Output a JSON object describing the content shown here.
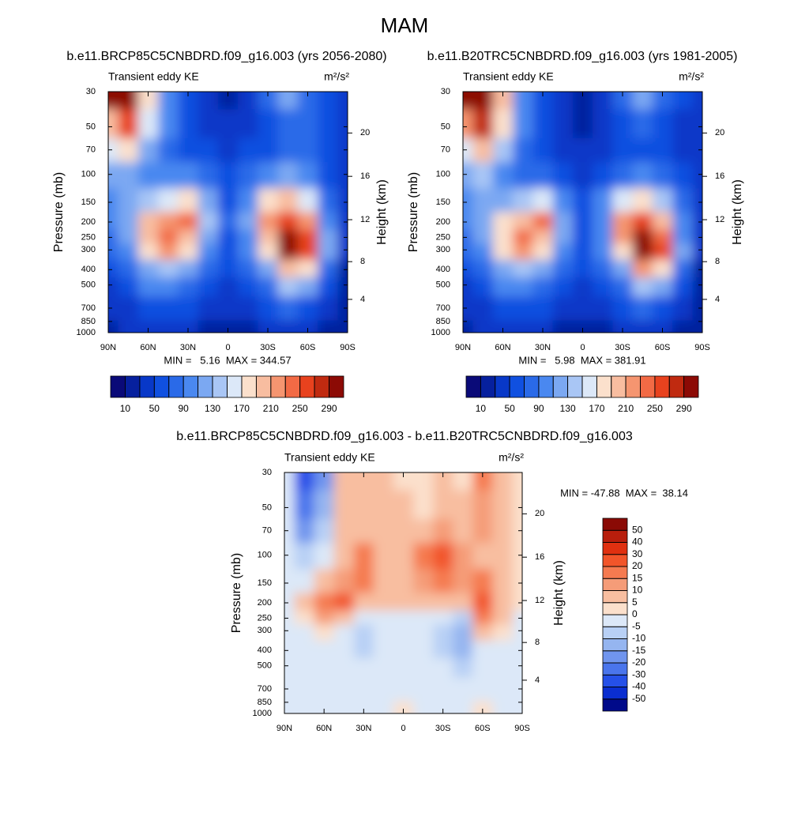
{
  "title": "MAM",
  "chart_data": [
    {
      "type": "contour",
      "subtitle": "b.e11.BRCP85C5CNBDRD.f09_g16.003 (yrs 2056-2080)",
      "title": "Transient eddy KE",
      "units": "m²/s²",
      "ylabel": "Pressure (mb)",
      "y2label": "Height (km)",
      "log_scale_y": true,
      "stats": "MIN =   5.16  MAX = 344.57",
      "x": [
        90,
        75,
        60,
        45,
        30,
        15,
        0,
        -15,
        -30,
        -45,
        -60,
        -75,
        -90
      ],
      "y": [
        30,
        50,
        70,
        100,
        150,
        200,
        250,
        300,
        400,
        500,
        700,
        1000
      ],
      "xlim": [
        90,
        -90
      ],
      "xticks": [
        {
          "value": 90,
          "label": "90N"
        },
        {
          "value": 60,
          "label": "60N"
        },
        {
          "value": 30,
          "label": "30N"
        },
        0,
        {
          "value": -30,
          "label": "30S"
        },
        {
          "value": -60,
          "label": "60S"
        },
        {
          "value": -90,
          "label": "90S"
        }
      ],
      "ylim": [
        1000,
        30
      ],
      "yticks": [
        30,
        50,
        70,
        100,
        150,
        200,
        250,
        300,
        400,
        500,
        700,
        850,
        1000
      ],
      "y2ticks": [
        4,
        8,
        12,
        16,
        20
      ],
      "z": [
        [
          300,
          290,
          170,
          100,
          50,
          30,
          10,
          30,
          70,
          110,
          80,
          50,
          40
        ],
        [
          200,
          250,
          150,
          90,
          50,
          40,
          30,
          40,
          60,
          80,
          70,
          50,
          40
        ],
        [
          150,
          170,
          120,
          80,
          60,
          50,
          40,
          50,
          60,
          70,
          70,
          50,
          30
        ],
        [
          120,
          120,
          100,
          90,
          90,
          70,
          50,
          70,
          100,
          110,
          90,
          60,
          30
        ],
        [
          100,
          110,
          130,
          150,
          170,
          110,
          60,
          100,
          170,
          190,
          150,
          80,
          30
        ],
        [
          90,
          120,
          190,
          210,
          230,
          130,
          70,
          110,
          220,
          250,
          220,
          100,
          30
        ],
        [
          80,
          120,
          190,
          240,
          200,
          110,
          60,
          100,
          200,
          290,
          250,
          110,
          30
        ],
        [
          70,
          100,
          170,
          220,
          170,
          100,
          60,
          90,
          170,
          300,
          260,
          110,
          30
        ],
        [
          50,
          80,
          120,
          140,
          110,
          80,
          50,
          70,
          110,
          200,
          170,
          80,
          25
        ],
        [
          40,
          60,
          90,
          100,
          80,
          60,
          40,
          60,
          80,
          130,
          110,
          60,
          25
        ],
        [
          30,
          40,
          60,
          60,
          50,
          40,
          30,
          40,
          50,
          70,
          60,
          40,
          20
        ],
        [
          20,
          30,
          40,
          35,
          30,
          20,
          15,
          25,
          30,
          40,
          35,
          25,
          10
        ]
      ],
      "colorbar": {
        "orientation": "horizontal",
        "levels": [
          10,
          30,
          50,
          70,
          90,
          110,
          130,
          150,
          170,
          190,
          210,
          230,
          250,
          270,
          290
        ],
        "labels": [
          10,
          50,
          90,
          130,
          170,
          210,
          250,
          290
        ],
        "colors": [
          "#0a0a78",
          "#06209e",
          "#0838c8",
          "#1050e0",
          "#2a6ae8",
          "#4a88f0",
          "#7ba8f2",
          "#a9c6f5",
          "#dce8f8",
          "#fbe0cc",
          "#f8bda0",
          "#f59570",
          "#f26a45",
          "#e8421e",
          "#c02a10",
          "#8c0a05"
        ]
      }
    },
    {
      "type": "contour",
      "subtitle": "b.e11.B20TRC5CNBDRD.f09_g16.003 (yrs 1981-2005)",
      "title": "Transient eddy KE",
      "units": "m²/s²",
      "ylabel": "Pressure (mb)",
      "y2label": "Height (km)",
      "log_scale_y": true,
      "stats": "MIN =   5.98  MAX = 381.91",
      "x": [
        90,
        75,
        60,
        45,
        30,
        15,
        0,
        -15,
        -30,
        -45,
        -60,
        -75,
        -90
      ],
      "y": [
        30,
        50,
        70,
        100,
        150,
        200,
        250,
        300,
        400,
        500,
        700,
        1000
      ],
      "xlim": [
        90,
        -90
      ],
      "xticks": [
        {
          "value": 90,
          "label": "90N"
        },
        {
          "value": 60,
          "label": "60N"
        },
        {
          "value": 30,
          "label": "30N"
        },
        0,
        {
          "value": -30,
          "label": "30S"
        },
        {
          "value": -60,
          "label": "60S"
        },
        {
          "value": -90,
          "label": "90S"
        }
      ],
      "ylim": [
        1000,
        30
      ],
      "yticks": [
        30,
        50,
        70,
        100,
        150,
        200,
        250,
        300,
        400,
        500,
        700,
        850,
        1000
      ],
      "y2ticks": [
        4,
        8,
        12,
        16,
        20
      ],
      "z": [
        [
          300,
          300,
          190,
          100,
          50,
          30,
          15,
          30,
          70,
          110,
          80,
          50,
          40
        ],
        [
          220,
          280,
          170,
          90,
          50,
          40,
          25,
          40,
          60,
          80,
          60,
          45,
          40
        ],
        [
          160,
          190,
          130,
          80,
          55,
          45,
          35,
          45,
          55,
          65,
          60,
          45,
          30
        ],
        [
          125,
          130,
          105,
          85,
          80,
          65,
          45,
          60,
          85,
          100,
          85,
          55,
          30
        ],
        [
          100,
          115,
          125,
          140,
          160,
          105,
          55,
          90,
          160,
          180,
          140,
          75,
          30
        ],
        [
          90,
          115,
          175,
          195,
          230,
          125,
          65,
          105,
          220,
          250,
          200,
          95,
          30
        ],
        [
          85,
          120,
          185,
          235,
          205,
          115,
          65,
          105,
          210,
          300,
          240,
          105,
          30
        ],
        [
          75,
          105,
          170,
          225,
          180,
          105,
          65,
          95,
          180,
          320,
          260,
          110,
          30
        ],
        [
          55,
          85,
          125,
          145,
          120,
          85,
          55,
          75,
          120,
          215,
          175,
          85,
          28
        ],
        [
          45,
          65,
          95,
          105,
          85,
          65,
          45,
          65,
          85,
          140,
          115,
          65,
          28
        ],
        [
          33,
          43,
          62,
          62,
          52,
          42,
          32,
          42,
          53,
          73,
          62,
          42,
          22
        ],
        [
          22,
          32,
          42,
          37,
          32,
          22,
          14,
          27,
          32,
          42,
          33,
          27,
          12
        ]
      ],
      "colorbar": {
        "orientation": "horizontal",
        "levels": [
          10,
          30,
          50,
          70,
          90,
          110,
          130,
          150,
          170,
          190,
          210,
          230,
          250,
          270,
          290
        ],
        "labels": [
          10,
          50,
          90,
          130,
          170,
          210,
          250,
          290
        ],
        "colors": [
          "#0a0a78",
          "#06209e",
          "#0838c8",
          "#1050e0",
          "#2a6ae8",
          "#4a88f0",
          "#7ba8f2",
          "#a9c6f5",
          "#dce8f8",
          "#fbe0cc",
          "#f8bda0",
          "#f59570",
          "#f26a45",
          "#e8421e",
          "#c02a10",
          "#8c0a05"
        ]
      }
    },
    {
      "type": "contour",
      "subtitle": "b.e11.BRCP85C5CNBDRD.f09_g16.003 - b.e11.B20TRC5CNBDRD.f09_g16.003",
      "title": "Transient eddy KE",
      "units": "m²/s²",
      "ylabel": "Pressure (mb)",
      "y2label": "Height (km)",
      "log_scale_y": true,
      "stats": "MIN = -47.88  MAX =  38.14",
      "x": [
        90,
        75,
        60,
        45,
        30,
        15,
        0,
        -15,
        -30,
        -45,
        -60,
        -75,
        -90
      ],
      "y": [
        30,
        50,
        70,
        100,
        150,
        200,
        250,
        300,
        400,
        500,
        700,
        1000
      ],
      "xlim": [
        90,
        -90
      ],
      "xticks": [
        {
          "value": 90,
          "label": "90N"
        },
        {
          "value": 60,
          "label": "60N"
        },
        {
          "value": 30,
          "label": "30N"
        },
        0,
        {
          "value": -30,
          "label": "30S"
        },
        {
          "value": -60,
          "label": "60S"
        },
        {
          "value": -90,
          "label": "90S"
        }
      ],
      "ylim": [
        1000,
        30
      ],
      "yticks": [
        30,
        50,
        70,
        100,
        150,
        200,
        250,
        300,
        400,
        500,
        700,
        850,
        1000
      ],
      "y2ticks": [
        4,
        8,
        12,
        16,
        20
      ],
      "z": [
        [
          -5,
          -40,
          -20,
          5,
          5,
          5,
          3,
          2,
          5,
          3,
          15,
          5,
          3
        ],
        [
          -5,
          -30,
          -15,
          5,
          5,
          5,
          5,
          3,
          5,
          5,
          12,
          5,
          3
        ],
        [
          -5,
          -20,
          -10,
          5,
          8,
          5,
          5,
          8,
          10,
          8,
          10,
          5,
          3
        ],
        [
          -5,
          -10,
          -5,
          8,
          15,
          8,
          8,
          15,
          20,
          10,
          8,
          5,
          2
        ],
        [
          -3,
          -5,
          5,
          12,
          15,
          8,
          8,
          12,
          15,
          10,
          15,
          5,
          2
        ],
        [
          -2,
          5,
          15,
          20,
          8,
          5,
          5,
          8,
          5,
          8,
          25,
          8,
          2
        ],
        [
          -3,
          3,
          10,
          8,
          -3,
          -2,
          -2,
          -3,
          -5,
          -8,
          15,
          5,
          -2
        ],
        [
          -3,
          -2,
          3,
          -2,
          -10,
          -3,
          -2,
          -3,
          -8,
          -15,
          5,
          2,
          -2
        ],
        [
          -5,
          -3,
          -2,
          -3,
          -8,
          -3,
          -2,
          -3,
          -8,
          -12,
          -2,
          -3,
          -3
        ],
        [
          -4,
          -3,
          -2,
          -2,
          -3,
          -2,
          -1,
          -3,
          -5,
          -6,
          -2,
          -3,
          -3
        ],
        [
          -3,
          -3,
          -2,
          -2,
          -2,
          -2,
          -1,
          -2,
          -3,
          -3,
          -2,
          -2,
          -2
        ],
        [
          -2,
          -2,
          -2,
          -2,
          -2,
          -2,
          2,
          -2,
          -2,
          -2,
          2,
          -2,
          -2
        ]
      ],
      "colorbar": {
        "orientation": "vertical",
        "levels": [
          -50,
          -40,
          -30,
          -20,
          -15,
          -10,
          -5,
          0,
          5,
          10,
          15,
          20,
          30,
          40,
          50
        ],
        "labels": [
          -50,
          -40,
          -30,
          -20,
          -15,
          -10,
          -5,
          0,
          5,
          10,
          15,
          20,
          30,
          40,
          50
        ],
        "colors": [
          "#000a8a",
          "#0a2ed0",
          "#2550e8",
          "#4a75ec",
          "#7095ee",
          "#95b5f0",
          "#b8d0f5",
          "#dce8f8",
          "#fbe0cc",
          "#f8bea0",
          "#f59c78",
          "#f57a50",
          "#f2552a",
          "#e03010",
          "#b81e0c",
          "#8a0a05"
        ]
      }
    }
  ]
}
